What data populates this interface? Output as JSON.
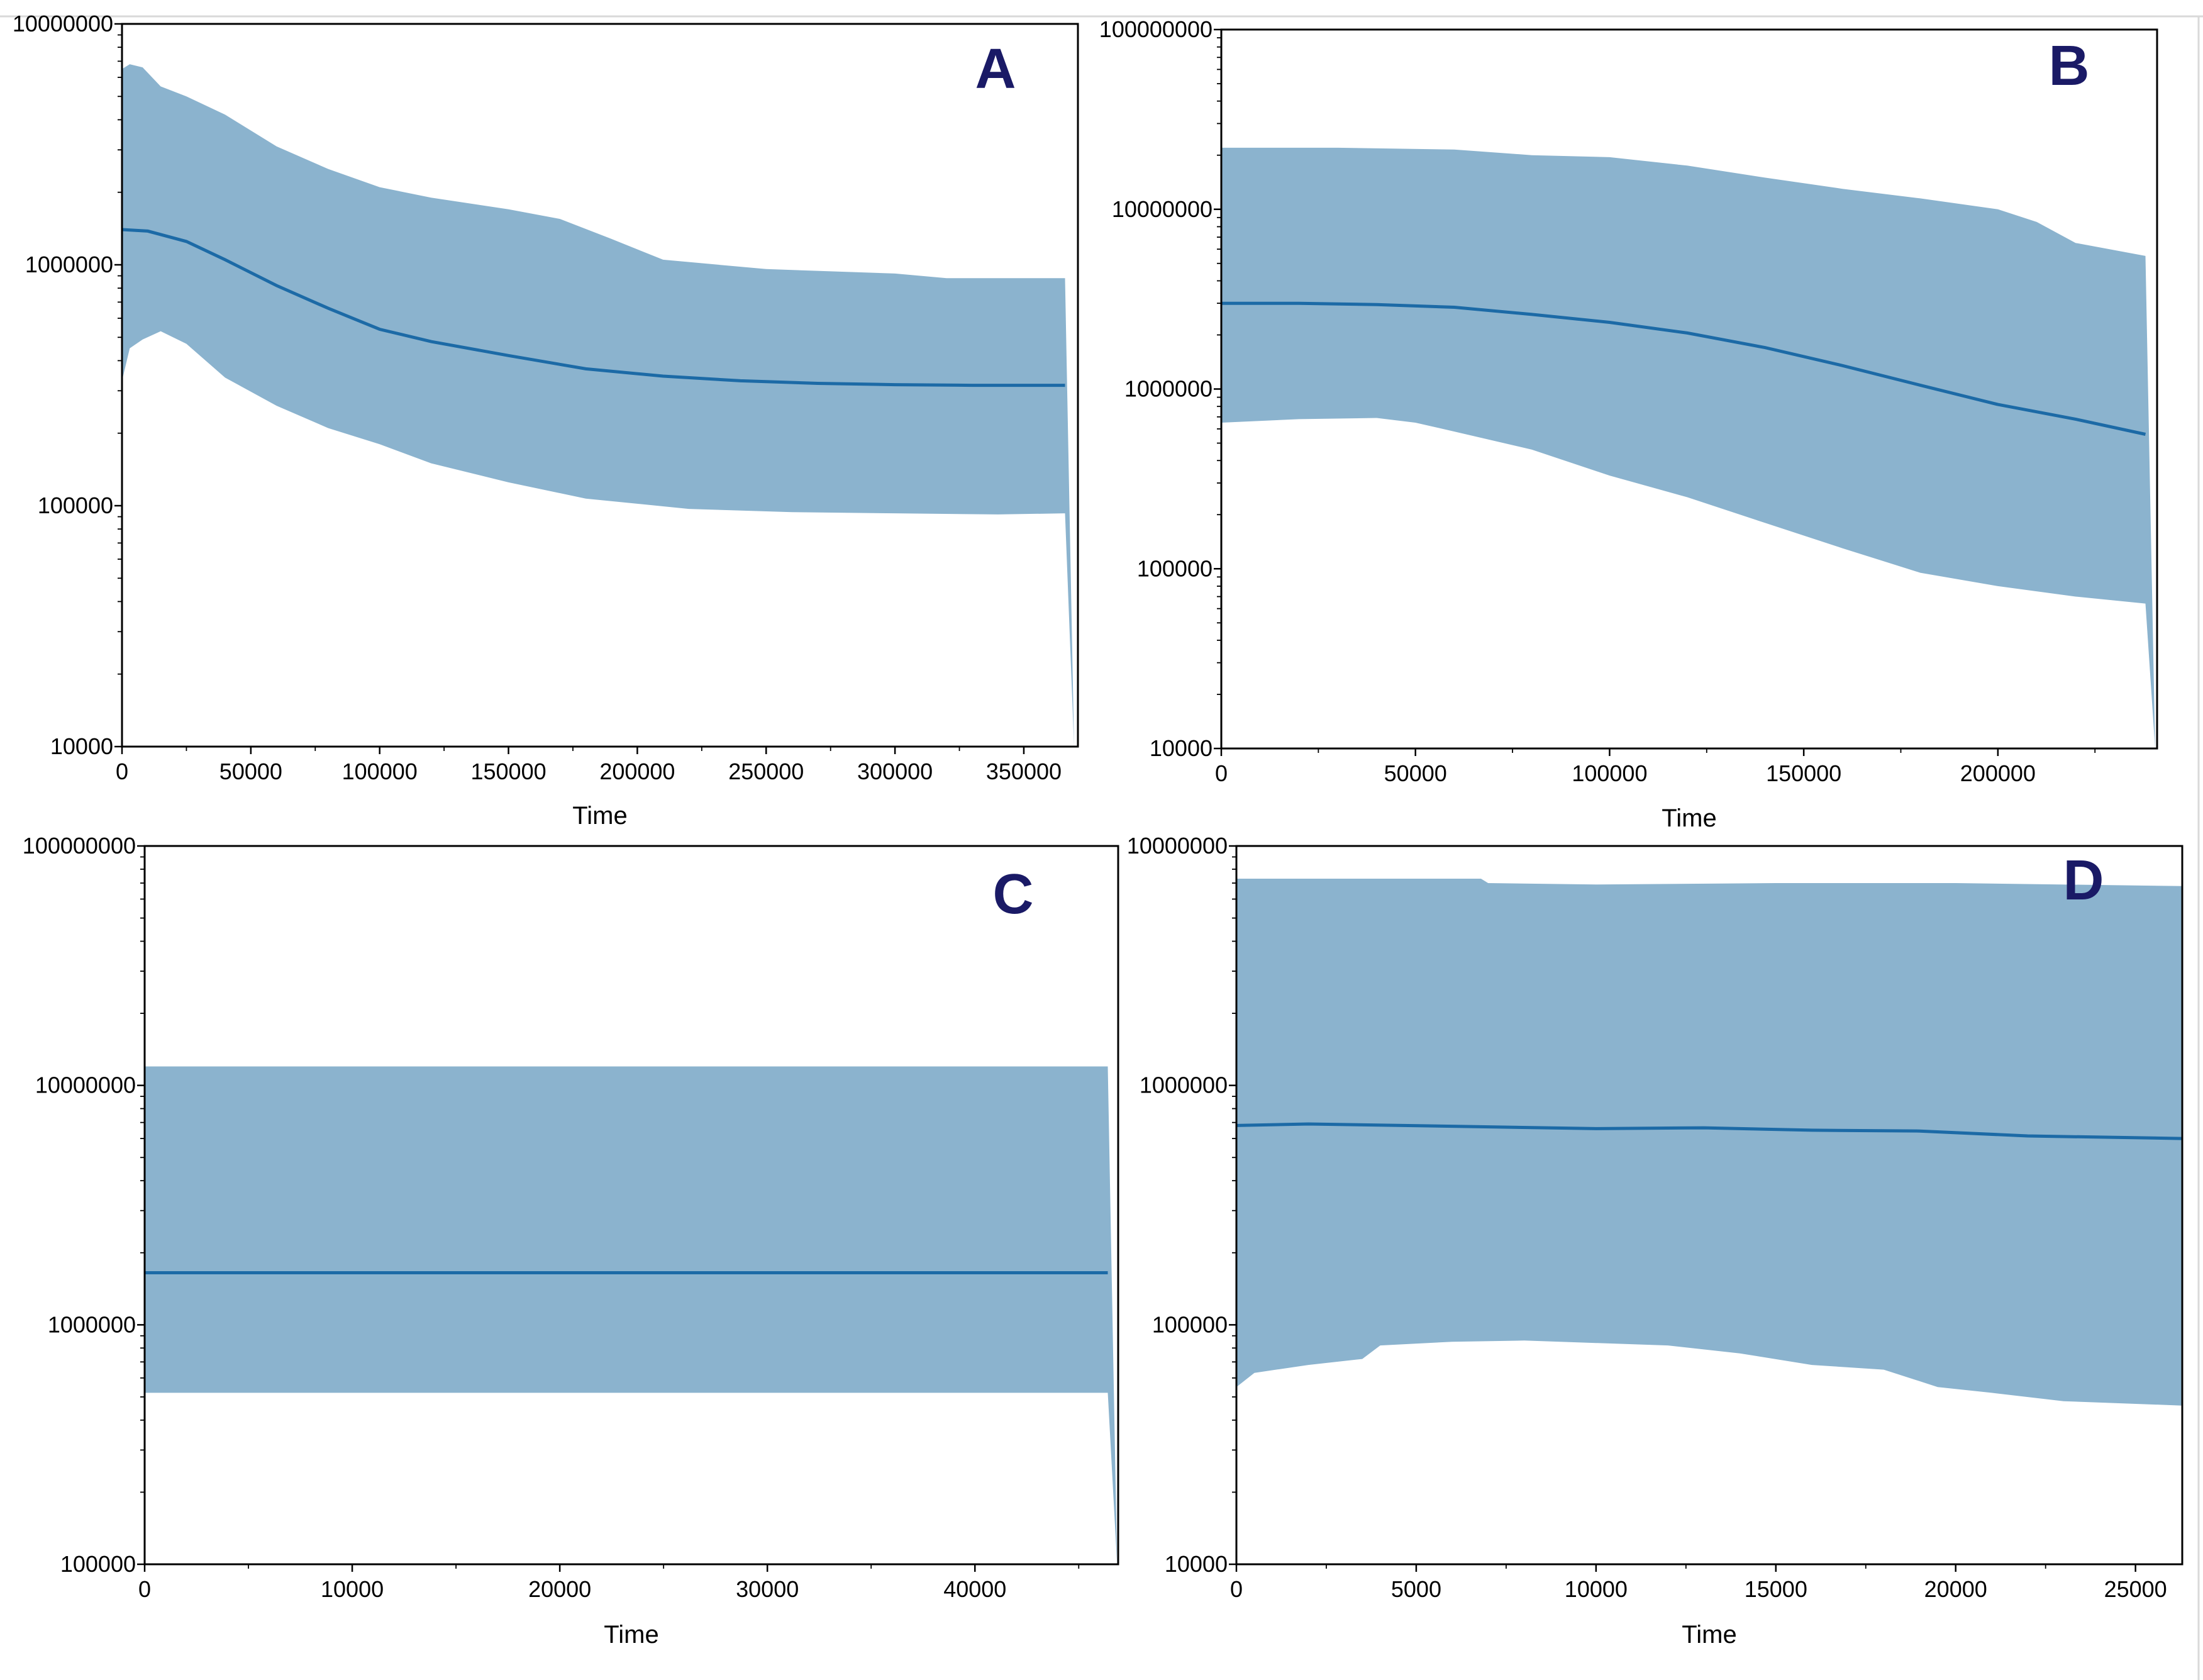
{
  "figure": {
    "colors": {
      "band": "#8bb3ce",
      "median": "#1c6aa6",
      "axis": "#000000",
      "panel_label": "#1a1a66"
    }
  },
  "chart_data": [
    {
      "type": "area",
      "panel_label": "A",
      "xlabel": "Time",
      "ylabel": "",
      "yscale": "log",
      "xlim": [
        0,
        371000
      ],
      "ylim": [
        10000,
        10000000
      ],
      "xticks": [
        0,
        50000,
        100000,
        150000,
        200000,
        250000,
        300000,
        350000
      ],
      "xtick_labels": [
        "0",
        "50000",
        "100000",
        "150000",
        "200000",
        "250000",
        "300000",
        "350000"
      ],
      "yticks": [
        10000,
        100000,
        1000000,
        10000000
      ],
      "ytick_labels": [
        "10000",
        "100000",
        "1000000",
        "10000000"
      ],
      "x_end": 366000,
      "x_drop": 369500,
      "series": [
        {
          "name": "upper",
          "x": [
            0,
            3000,
            8000,
            15000,
            25000,
            40000,
            60000,
            80000,
            100000,
            120000,
            150000,
            170000,
            190000,
            210000,
            250000,
            300000,
            320000,
            366000
          ],
          "values": [
            6500000,
            6800000,
            6600000,
            5500000,
            5000000,
            4200000,
            3100000,
            2500000,
            2100000,
            1900000,
            1700000,
            1550000,
            1280000,
            1050000,
            960000,
            920000,
            880000,
            880000
          ]
        },
        {
          "name": "median",
          "x": [
            0,
            10000,
            25000,
            40000,
            60000,
            80000,
            100000,
            120000,
            150000,
            180000,
            210000,
            240000,
            270000,
            300000,
            330000,
            366000
          ],
          "values": [
            1400000,
            1380000,
            1250000,
            1050000,
            820000,
            660000,
            540000,
            480000,
            420000,
            370000,
            345000,
            330000,
            322000,
            318000,
            316000,
            316000
          ]
        },
        {
          "name": "lower",
          "x": [
            0,
            3000,
            8000,
            15000,
            25000,
            40000,
            60000,
            80000,
            100000,
            120000,
            150000,
            180000,
            220000,
            260000,
            300000,
            340000,
            366000
          ],
          "values": [
            330000,
            450000,
            490000,
            530000,
            470000,
            340000,
            260000,
            210000,
            180000,
            150000,
            125000,
            107000,
            97000,
            94000,
            93000,
            92000,
            93000
          ]
        }
      ]
    },
    {
      "type": "area",
      "panel_label": "B",
      "xlabel": "Time",
      "ylabel": "",
      "yscale": "log",
      "xlim": [
        0,
        241000
      ],
      "ylim": [
        10000,
        100000000
      ],
      "xticks": [
        0,
        50000,
        100000,
        150000,
        200000
      ],
      "xtick_labels": [
        "0",
        "50000",
        "100000",
        "150000",
        "200000"
      ],
      "yticks": [
        10000,
        100000,
        1000000,
        10000000,
        100000000
      ],
      "ytick_labels": [
        "10000",
        "100000",
        "1000000",
        "10000000",
        "100000000"
      ],
      "x_end": 238000,
      "x_drop": 240500,
      "series": [
        {
          "name": "upper",
          "x": [
            0,
            30000,
            60000,
            80000,
            100000,
            120000,
            140000,
            160000,
            180000,
            200000,
            210000,
            220000,
            238000
          ],
          "values": [
            22000000,
            22000000,
            21500000,
            20000000,
            19500000,
            17500000,
            15000000,
            13000000,
            11500000,
            10000000,
            8500000,
            6500000,
            5500000
          ]
        },
        {
          "name": "median",
          "x": [
            0,
            20000,
            40000,
            60000,
            80000,
            100000,
            120000,
            140000,
            160000,
            180000,
            200000,
            220000,
            238000
          ],
          "values": [
            3000000,
            3000000,
            2950000,
            2850000,
            2600000,
            2350000,
            2050000,
            1700000,
            1350000,
            1050000,
            820000,
            680000,
            560000
          ]
        },
        {
          "name": "lower",
          "x": [
            0,
            20000,
            40000,
            50000,
            60000,
            80000,
            100000,
            120000,
            140000,
            160000,
            180000,
            200000,
            220000,
            238000
          ],
          "values": [
            650000,
            680000,
            690000,
            650000,
            580000,
            460000,
            330000,
            250000,
            180000,
            130000,
            95000,
            80000,
            70000,
            64000
          ]
        }
      ]
    },
    {
      "type": "area",
      "panel_label": "C",
      "xlabel": "Time",
      "ylabel": "",
      "yscale": "log",
      "xlim": [
        0,
        46900
      ],
      "ylim": [
        100000,
        100000000
      ],
      "xticks": [
        0,
        10000,
        20000,
        30000,
        40000
      ],
      "xtick_labels": [
        "0",
        "10000",
        "20000",
        "30000",
        "40000"
      ],
      "yticks": [
        100000,
        1000000,
        10000000,
        100000000
      ],
      "ytick_labels": [
        "100000",
        "1000000",
        "10000000",
        "100000000"
      ],
      "x_end": 46400,
      "x_drop": 46850,
      "series": [
        {
          "name": "upper",
          "x": [
            0,
            46400
          ],
          "values": [
            12000000,
            12000000
          ]
        },
        {
          "name": "median",
          "x": [
            0,
            46400
          ],
          "values": [
            1650000,
            1650000
          ]
        },
        {
          "name": "lower",
          "x": [
            0,
            46400
          ],
          "values": [
            520000,
            520000
          ]
        }
      ]
    },
    {
      "type": "area",
      "panel_label": "D",
      "xlabel": "Time",
      "ylabel": "",
      "yscale": "log",
      "xlim": [
        0,
        26300
      ],
      "ylim": [
        10000,
        10000000
      ],
      "xticks": [
        0,
        5000,
        10000,
        15000,
        20000,
        25000
      ],
      "xtick_labels": [
        "0",
        "5000",
        "10000",
        "15000",
        "20000",
        "25000"
      ],
      "yticks": [
        10000,
        100000,
        1000000,
        10000000
      ],
      "ytick_labels": [
        "10000",
        "100000",
        "1000000",
        "10000000"
      ],
      "x_end": 26300,
      "x_drop": null,
      "series": [
        {
          "name": "upper",
          "x": [
            0,
            6800,
            7000,
            10000,
            15000,
            20000,
            26300
          ],
          "values": [
            7300000,
            7300000,
            7000000,
            6900000,
            7000000,
            7000000,
            6800000
          ]
        },
        {
          "name": "median",
          "x": [
            0,
            2000,
            6000,
            10000,
            13000,
            16000,
            19000,
            22000,
            26300
          ],
          "values": [
            680000,
            690000,
            675000,
            660000,
            665000,
            650000,
            645000,
            615000,
            600000
          ]
        },
        {
          "name": "lower",
          "x": [
            0,
            500,
            2000,
            3500,
            4000,
            6000,
            8000,
            10000,
            12000,
            14000,
            16000,
            18000,
            19500,
            21000,
            23000,
            26300
          ],
          "values": [
            55000,
            63000,
            68000,
            72000,
            82000,
            85000,
            86000,
            84000,
            82000,
            76000,
            68000,
            65000,
            55000,
            52000,
            48000,
            46000
          ]
        }
      ]
    }
  ]
}
